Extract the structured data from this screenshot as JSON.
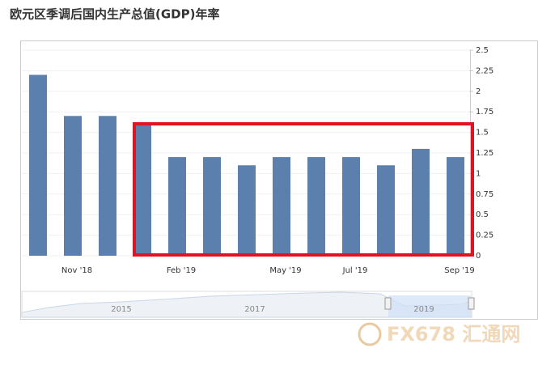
{
  "chart_data": {
    "type": "bar",
    "title": "欧元区季调后国内生产总值(GDP)年率",
    "categories": [
      null,
      "Nov '18",
      null,
      null,
      "Feb '19",
      null,
      null,
      "May '19",
      null,
      "Jul '19",
      null,
      null,
      "Sep '19"
    ],
    "values": [
      2.2,
      1.7,
      1.7,
      1.6,
      1.2,
      1.2,
      1.1,
      1.2,
      1.2,
      1.2,
      1.1,
      1.3,
      1.2
    ],
    "color": "#5b80ad",
    "ylim": [
      0,
      2.5
    ],
    "yticks": [
      0,
      0.25,
      0.5,
      0.75,
      1,
      1.25,
      1.5,
      1.75,
      2,
      2.25,
      2.5
    ],
    "grid": true,
    "navigator_labels": [
      "2015",
      "2017",
      "2019"
    ],
    "watermark": "FX678 汇通网"
  }
}
